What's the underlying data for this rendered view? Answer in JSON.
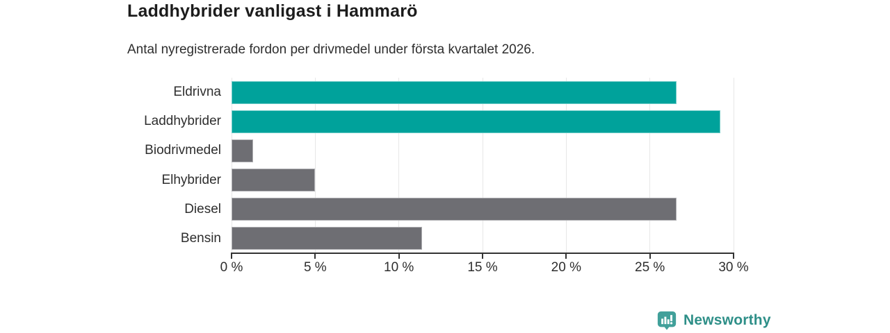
{
  "chart_data": {
    "type": "bar",
    "orientation": "horizontal",
    "title": "Laddhybrider vanligast i Hammarö",
    "subtitle": "Antal nyregistrerade fordon per drivmedel under första kvartalet 2026.",
    "categories": [
      "Eldrivna",
      "Laddhybrider",
      "Biodrivmedel",
      "Elhybrider",
      "Diesel",
      "Bensin"
    ],
    "values": [
      26.6,
      29.2,
      1.3,
      5.0,
      26.6,
      11.4
    ],
    "unit": "%",
    "bar_colors": [
      "#00a29b",
      "#00a29b",
      "#6e6e73",
      "#6e6e73",
      "#6e6e73",
      "#6e6e73"
    ],
    "xlim": [
      0,
      30
    ],
    "x_ticks": [
      0,
      5,
      10,
      15,
      20,
      25,
      30
    ],
    "x_tick_labels": [
      "0 %",
      "5 %",
      "10 %",
      "15 %",
      "20 %",
      "25 %",
      "30 %"
    ],
    "grid": "vertical",
    "legend": "none"
  },
  "colors": {
    "accent_teal": "#00a29b",
    "neutral_gray": "#6e6e73",
    "gridline": "#e7e7e7",
    "axis": "#333333"
  },
  "branding": {
    "logo_text": "Newsworthy",
    "logo_text_color": "#2e8f88",
    "badge_color": "#41a09a",
    "icon": "bar-chart-speech-bubble"
  }
}
